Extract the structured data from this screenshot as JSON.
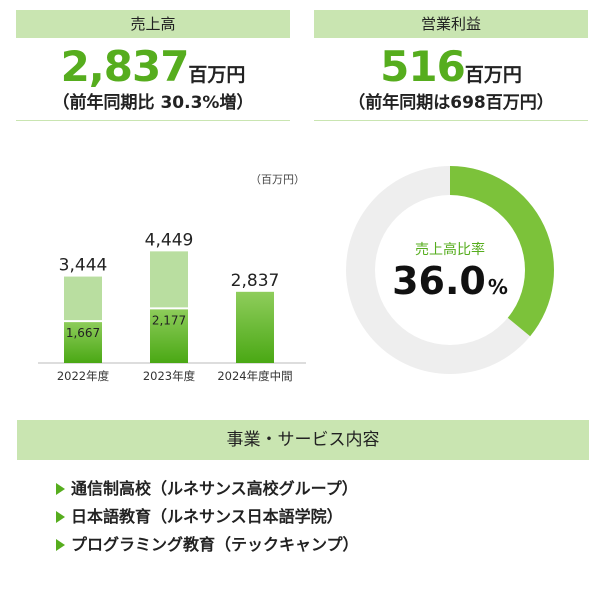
{
  "kpis": {
    "sales": {
      "title": "売上高",
      "value": "2,837",
      "unit": "百万円",
      "note": "（前年同期比 30.3%増）"
    },
    "operating_profit": {
      "title": "営業利益",
      "value": "516",
      "unit": "百万円",
      "note": "（前年同期は698百万円）"
    }
  },
  "colors": {
    "accent": "#56ad1e",
    "header_bg": "#c9e5b1",
    "bar_light": "#b9dea0",
    "bar_dark": "#56ad1e",
    "donut_track": "#eeeeee"
  },
  "chart_data": [
    {
      "type": "bar",
      "unit_label": "（百万円）",
      "categories": [
        "2022年度",
        "2023年度",
        "2024年度中間"
      ],
      "series": [
        {
          "values": [
            1667,
            2177,
            2837
          ]
        },
        {
          "values": [
            1777,
            2272,
            0
          ]
        }
      ],
      "totals": [
        3444,
        4449,
        2837
      ],
      "total_labels": [
        "3,444",
        "4,449",
        "2,837"
      ],
      "inner_labels": [
        "1,667",
        "2,177",
        ""
      ],
      "ylim": [
        0,
        5300
      ]
    },
    {
      "type": "pie",
      "label": "売上高比率",
      "value": 36.0,
      "value_text": "36.0",
      "unit": "%"
    }
  ],
  "services": {
    "title": "事業・サービス内容",
    "items": [
      "通信制高校（ルネサンス高校グループ）",
      "日本語教育（ルネサンス日本語学院）",
      "プログラミング教育（テックキャンプ）"
    ]
  }
}
